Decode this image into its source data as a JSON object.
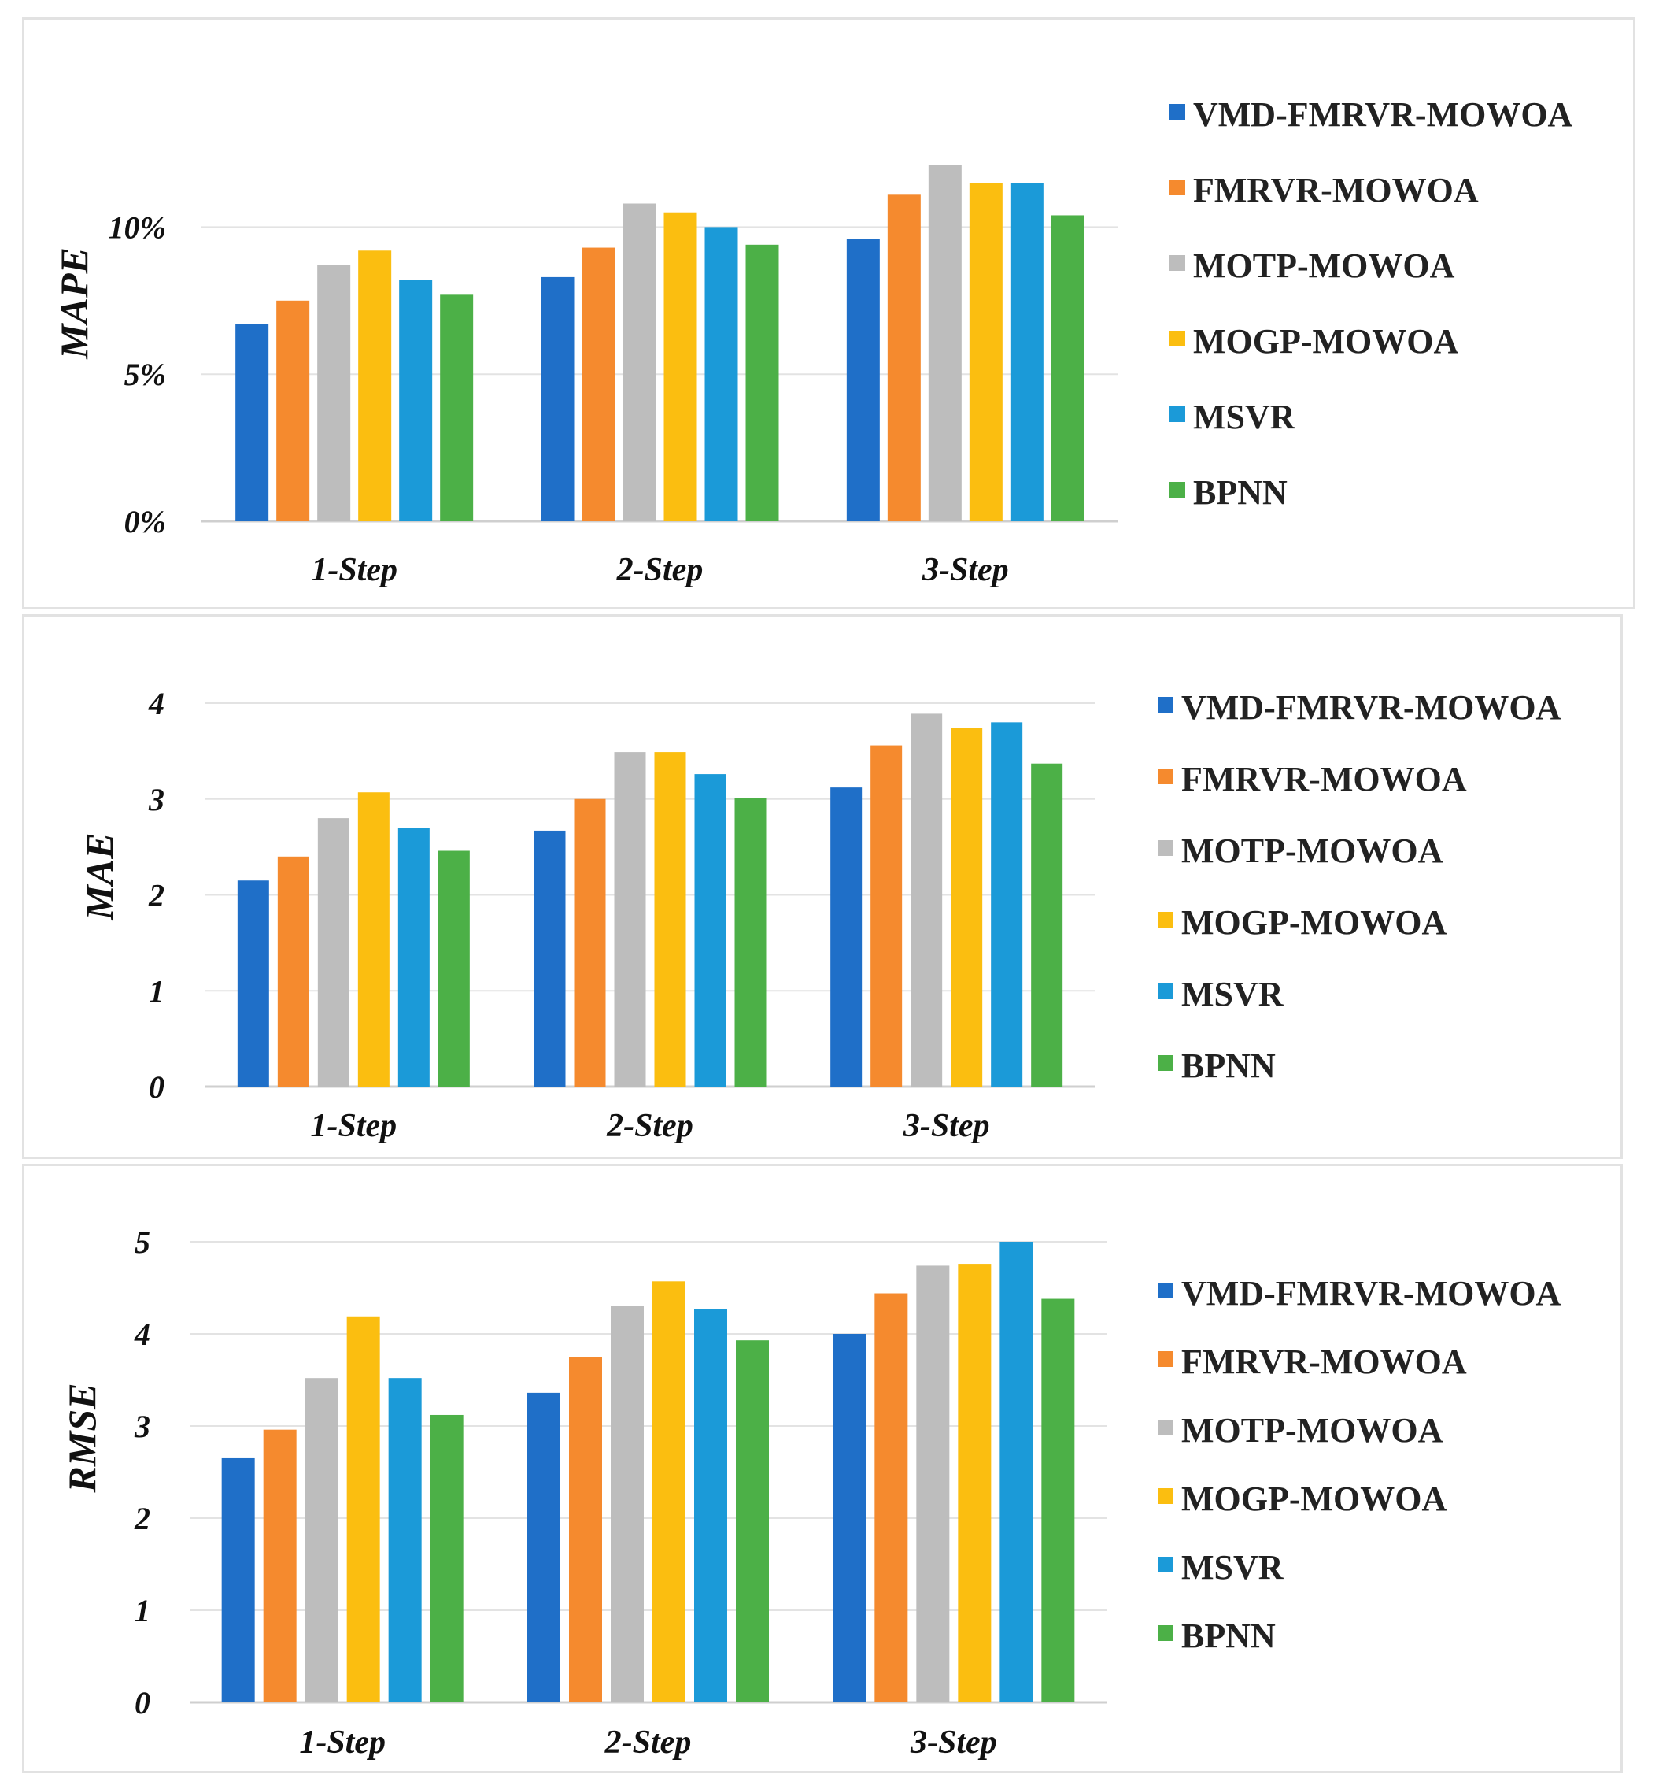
{
  "legend": [
    "VMD-FMRVR-MOWOA",
    "FMRVR-MOWOA",
    "MOTP-MOWOA",
    "MOGP-MOWOA",
    "MSVR",
    "BPNN"
  ],
  "colors": [
    "#1f6fc8",
    "#f58a2e",
    "#bdbdbd",
    "#fbbe10",
    "#1b9ad8",
    "#4cb047"
  ],
  "chart_data": [
    {
      "type": "bar",
      "ylabel": "MAPE",
      "categories": [
        "1-Step",
        "2-Step",
        "3-Step"
      ],
      "yticks": [
        "0%",
        "5%",
        "10%"
      ],
      "ylim": [
        0,
        12.5
      ],
      "tick_values": [
        0,
        5,
        10
      ],
      "gridlines": true,
      "legend_position": "right",
      "series": [
        {
          "name": "VMD-FMRVR-MOWOA",
          "values": [
            6.7,
            8.3,
            9.6
          ]
        },
        {
          "name": "FMRVR-MOWOA",
          "values": [
            7.5,
            9.3,
            11.1
          ]
        },
        {
          "name": "MOTP-MOWOA",
          "values": [
            8.7,
            10.8,
            12.1
          ]
        },
        {
          "name": "MOGP-MOWOA",
          "values": [
            9.2,
            10.5,
            11.5
          ]
        },
        {
          "name": "MSVR",
          "values": [
            8.2,
            10.0,
            11.5
          ]
        },
        {
          "name": "BPNN",
          "values": [
            7.7,
            9.4,
            10.4
          ]
        }
      ]
    },
    {
      "type": "bar",
      "ylabel": "MAE",
      "categories": [
        "1-Step",
        "2-Step",
        "3-Step"
      ],
      "yticks": [
        "0",
        "1",
        "2",
        "3",
        "4"
      ],
      "ylim": [
        0,
        4
      ],
      "tick_values": [
        0,
        1,
        2,
        3,
        4
      ],
      "gridlines": true,
      "legend_position": "right",
      "series": [
        {
          "name": "VMD-FMRVR-MOWOA",
          "values": [
            2.15,
            2.67,
            3.12
          ]
        },
        {
          "name": "FMRVR-MOWOA",
          "values": [
            2.4,
            3.0,
            3.56
          ]
        },
        {
          "name": "MOTP-MOWOA",
          "values": [
            2.8,
            3.49,
            3.89
          ]
        },
        {
          "name": "MOGP-MOWOA",
          "values": [
            3.07,
            3.49,
            3.74
          ]
        },
        {
          "name": "MSVR",
          "values": [
            2.7,
            3.26,
            3.8
          ]
        },
        {
          "name": "BPNN",
          "values": [
            2.46,
            3.01,
            3.37
          ]
        }
      ]
    },
    {
      "type": "bar",
      "ylabel": "RMSE",
      "categories": [
        "1-Step",
        "2-Step",
        "3-Step"
      ],
      "yticks": [
        "0",
        "1",
        "2",
        "3",
        "4",
        "5"
      ],
      "ylim": [
        0,
        5
      ],
      "tick_values": [
        0,
        1,
        2,
        3,
        4,
        5
      ],
      "gridlines": true,
      "legend_position": "right",
      "series": [
        {
          "name": "VMD-FMRVR-MOWOA",
          "values": [
            2.65,
            3.36,
            4.0
          ]
        },
        {
          "name": "FMRVR-MOWOA",
          "values": [
            2.96,
            3.75,
            4.44
          ]
        },
        {
          "name": "MOTP-MOWOA",
          "values": [
            3.52,
            4.3,
            4.74
          ]
        },
        {
          "name": "MOGP-MOWOA",
          "values": [
            4.19,
            4.57,
            4.76
          ]
        },
        {
          "name": "MSVR",
          "values": [
            3.52,
            4.27,
            5.0
          ]
        },
        {
          "name": "BPNN",
          "values": [
            3.12,
            3.93,
            4.38
          ]
        }
      ]
    }
  ]
}
